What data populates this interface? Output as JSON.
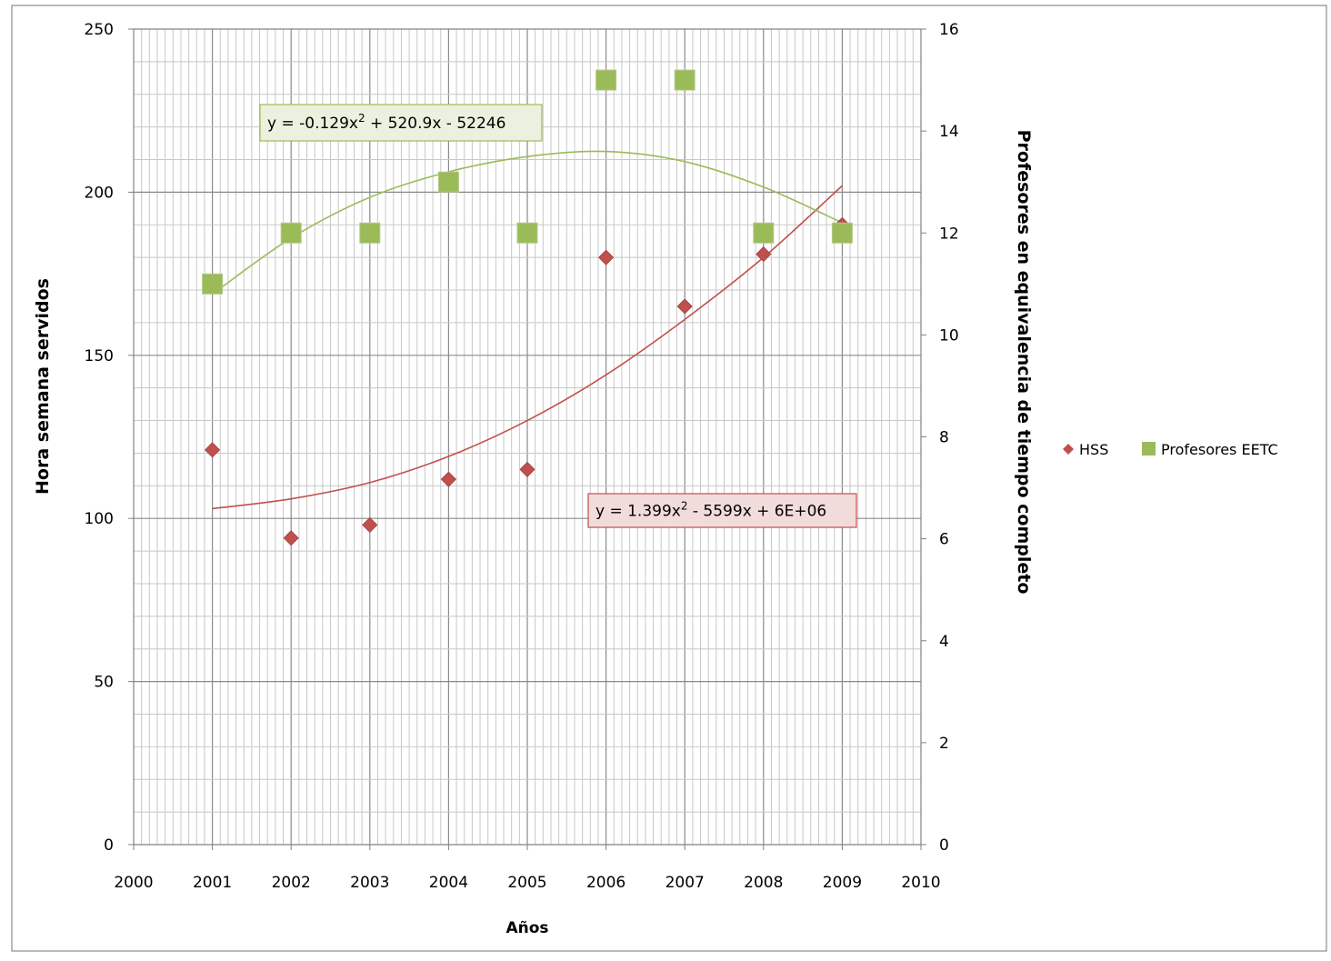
{
  "chart_data": {
    "type": "scatter",
    "title": "",
    "xlabel": "Años",
    "ylabel": "Hora semana servidos",
    "y2label": "Profesores en equivalencia de tiempo completo",
    "xlim": [
      2000,
      2010
    ],
    "ylim": [
      0,
      250
    ],
    "y2lim": [
      0,
      16
    ],
    "x_ticks": [
      "2000",
      "2001",
      "2002",
      "2003",
      "2004",
      "2005",
      "2006",
      "2007",
      "2008",
      "2009",
      "2010"
    ],
    "y_ticks": [
      "0",
      "50",
      "100",
      "150",
      "200",
      "250"
    ],
    "y2_ticks": [
      "0",
      "2",
      "4",
      "6",
      "8",
      "10",
      "12",
      "14",
      "16"
    ],
    "grid": true,
    "legend_position": "right",
    "series": [
      {
        "name": "HSS",
        "axis": "left",
        "marker": "diamond",
        "color": "#c0504d",
        "x": [
          2001,
          2002,
          2003,
          2004,
          2005,
          2006,
          2007,
          2008,
          2009
        ],
        "values": [
          121,
          94,
          98,
          112,
          115,
          180,
          165,
          181,
          190
        ]
      },
      {
        "name": "Profesores EETC",
        "axis": "right",
        "marker": "square",
        "color": "#9bbb59",
        "x": [
          2001,
          2002,
          2003,
          2004,
          2005,
          2006,
          2007,
          2008,
          2009
        ],
        "values": [
          11,
          12,
          12,
          13,
          12,
          15,
          15,
          12,
          12
        ]
      }
    ],
    "trendlines": [
      {
        "series": "HSS",
        "axis": "left",
        "color": "#c0504d",
        "label_prefix": "y = 1.399x",
        "label_exp": "2",
        "label_suffix": " - 5599x + 6E+06",
        "label_bg": "#f2dcdb",
        "points": [
          [
            2001,
            103
          ],
          [
            2002,
            106
          ],
          [
            2003,
            111
          ],
          [
            2004,
            119
          ],
          [
            2005,
            130
          ],
          [
            2006,
            144
          ],
          [
            2007,
            161
          ],
          [
            2008,
            180
          ],
          [
            2009,
            202
          ]
        ]
      },
      {
        "series": "Profesores EETC",
        "axis": "right",
        "color": "#9bbb59",
        "label_prefix": "y = -0.129x",
        "label_exp": "2",
        "label_suffix": " + 520.9x - 52246",
        "label_bg": "#ebf1de",
        "points": [
          [
            2001,
            10.8
          ],
          [
            2002,
            11.9
          ],
          [
            2003,
            12.7
          ],
          [
            2004,
            13.2
          ],
          [
            2005,
            13.5
          ],
          [
            2006,
            13.6
          ],
          [
            2007,
            13.4
          ],
          [
            2008,
            12.9
          ],
          [
            2009,
            12.2
          ]
        ]
      }
    ]
  }
}
